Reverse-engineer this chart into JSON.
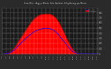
{
  "title": "Solar W/m² - Avg per Minute  Solar Radiation & Day Average per Minute",
  "bg_color": "#2a2a2a",
  "plot_bg": "#1a1a1a",
  "grid_color": "#ffffff",
  "fill_color": "#ff0000",
  "line_color": "#cc0000",
  "avg_line_color": "#0000ff",
  "text_color": "#cccccc",
  "legend_solar": "Solar W/m²",
  "legend_avg": "Day Avg",
  "x_ticks": [
    0,
    12,
    24,
    36,
    48,
    60,
    72,
    84,
    96,
    108,
    120,
    132,
    144,
    156,
    168,
    180,
    192,
    204,
    216,
    228,
    240,
    252,
    264,
    276,
    288
  ],
  "x_labels": [
    "4:30",
    "5:00",
    "5:30",
    "6:00",
    "6:30",
    "7:00",
    "7:30",
    "8:00",
    "8:30",
    "9:00",
    "9:30",
    "10:00",
    "10:30",
    "11:00",
    "11:30",
    "12:00",
    "12:30",
    "13:00",
    "13:30",
    "14:00",
    "14:30",
    "15:00",
    "15:30",
    "16:00",
    "16:30"
  ],
  "y_ticks": [
    0,
    100,
    200,
    300,
    400,
    500,
    600,
    700,
    800
  ],
  "ylim": [
    0,
    880
  ],
  "xlim": [
    0,
    290
  ],
  "solar_data_x": [
    0,
    3,
    6,
    9,
    12,
    15,
    18,
    21,
    24,
    27,
    30,
    33,
    36,
    39,
    42,
    45,
    48,
    51,
    54,
    57,
    60,
    63,
    66,
    69,
    72,
    75,
    78,
    81,
    84,
    87,
    90,
    93,
    96,
    99,
    102,
    105,
    108,
    111,
    114,
    117,
    120,
    123,
    126,
    129,
    132,
    135,
    138,
    141,
    144,
    147,
    150,
    153,
    156,
    159,
    162,
    165,
    168,
    171,
    174,
    177,
    180,
    183,
    186,
    189,
    192,
    195,
    198,
    201,
    204,
    207,
    210,
    213,
    216,
    219,
    222,
    225,
    228,
    231,
    234,
    237,
    240,
    243,
    246,
    249,
    252,
    255,
    258,
    261,
    264,
    267,
    270,
    273,
    276,
    279,
    282,
    285,
    288
  ],
  "solar_data_y": [
    0,
    0,
    0,
    0,
    5,
    10,
    15,
    25,
    35,
    50,
    70,
    90,
    110,
    140,
    170,
    200,
    235,
    265,
    290,
    320,
    350,
    380,
    410,
    440,
    470,
    500,
    525,
    555,
    580,
    610,
    635,
    655,
    675,
    695,
    710,
    725,
    735,
    745,
    755,
    760,
    765,
    768,
    770,
    772,
    774,
    774,
    772,
    770,
    768,
    762,
    755,
    745,
    730,
    715,
    695,
    670,
    645,
    615,
    580,
    545,
    505,
    465,
    425,
    385,
    345,
    305,
    265,
    225,
    188,
    155,
    122,
    94,
    70,
    52,
    36,
    24,
    14,
    7,
    2,
    0,
    0,
    0,
    0,
    0,
    0,
    0,
    0,
    0,
    0,
    0,
    0,
    0,
    0,
    0,
    0,
    0,
    0
  ],
  "avg_data_y": [
    0,
    0,
    0,
    0,
    3,
    6,
    9,
    14,
    20,
    30,
    44,
    58,
    72,
    90,
    110,
    130,
    152,
    172,
    190,
    210,
    230,
    248,
    265,
    282,
    300,
    318,
    335,
    352,
    366,
    382,
    396,
    410,
    422,
    434,
    444,
    452,
    460,
    466,
    472,
    477,
    481,
    484,
    487,
    489,
    491,
    491,
    489,
    487,
    484,
    480,
    475,
    466,
    454,
    440,
    424,
    406,
    387,
    366,
    343,
    319,
    295,
    272,
    249,
    226,
    203,
    180,
    156,
    131,
    108,
    88,
    68,
    52,
    39,
    29,
    19,
    13,
    8,
    4,
    1,
    0,
    0,
    0,
    0,
    0,
    0,
    0,
    0,
    0,
    0,
    0,
    0,
    0,
    0,
    0,
    0,
    0,
    0
  ]
}
